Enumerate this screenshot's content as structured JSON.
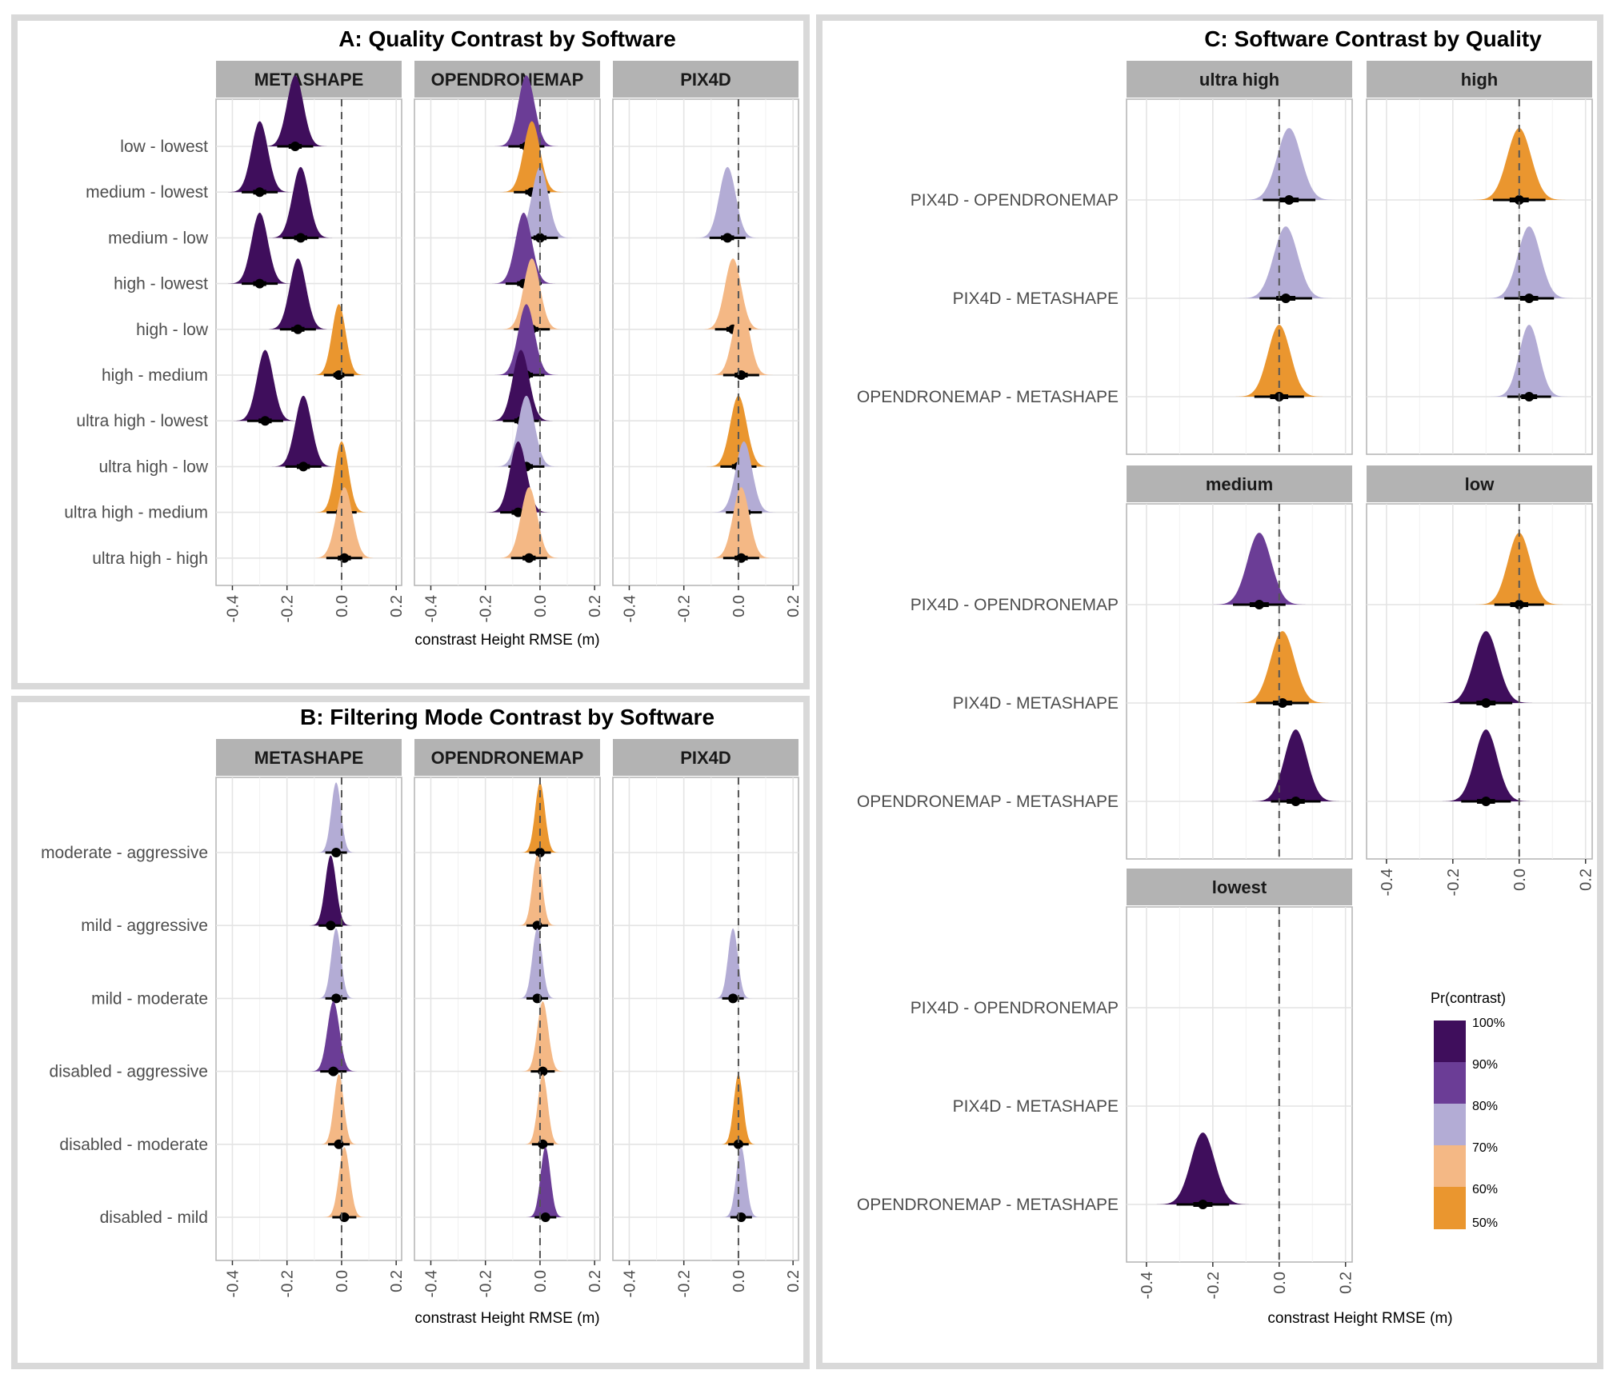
{
  "colors": {
    "c100": "#3f0e5c",
    "c90": "#6b3d96",
    "c80": "#b3acd5",
    "c70": "#f4b885",
    "c60": "#ea962f"
  },
  "panel_a": {
    "title": "A: Quality Contrast by Software"
  },
  "panel_b": {
    "title": "B: Filtering Mode Contrast by Software"
  },
  "panel_c": {
    "title": "C: Software Contrast by Quality"
  },
  "x_axis_label": "constrast Height RMSE (m)",
  "legend": {
    "title": "Pr(contrast)",
    "items": [
      {
        "label": "100%",
        "color": "#3f0e5c"
      },
      {
        "label": "90%",
        "color": "#6b3d96"
      },
      {
        "label": "80%",
        "color": "#b3acd5"
      },
      {
        "label": "70%",
        "color": "#f4b885"
      },
      {
        "label": "60%",
        "color": "#ea962f"
      },
      {
        "label": "50%",
        "color": ""
      }
    ]
  },
  "chart_data": [
    {
      "type": "density-ridge",
      "title": "A: Quality Contrast by Software",
      "xlabel": "constrast Height RMSE (m)",
      "xlim": [
        -0.46,
        0.22
      ],
      "xticks": [
        -0.4,
        -0.2,
        0.0,
        0.2
      ],
      "tick_labels": [
        "-0.4",
        "-0.2",
        "0.0",
        "0.2"
      ],
      "rows": [
        "low - lowest",
        "medium - lowest",
        "medium - low",
        "high - lowest",
        "high - low",
        "high - medium",
        "ultra high - lowest",
        "ultra high - low",
        "ultra high - medium",
        "ultra high - high"
      ],
      "facets": [
        {
          "name": "METASHAPE",
          "median": [
            -0.17,
            -0.3,
            -0.15,
            -0.3,
            -0.16,
            -0.01,
            -0.28,
            -0.14,
            0.0,
            0.01
          ],
          "sd": [
            0.03,
            0.03,
            0.03,
            0.03,
            0.03,
            0.025,
            0.03,
            0.03,
            0.025,
            0.03
          ],
          "tier": [
            "c100",
            "c100",
            "c100",
            "c100",
            "c100",
            "c60",
            "c100",
            "c100",
            "c60",
            "c70"
          ]
        },
        {
          "name": "OPENDRONEMAP",
          "median": [
            -0.05,
            -0.03,
            0.0,
            -0.06,
            -0.03,
            -0.05,
            -0.07,
            -0.05,
            -0.08,
            -0.04
          ],
          "sd": [
            0.03,
            0.03,
            0.03,
            0.03,
            0.03,
            0.03,
            0.03,
            0.03,
            0.03,
            0.03
          ],
          "tier": [
            "c90",
            "c60",
            "c80",
            "c90",
            "c70",
            "c90",
            "c100",
            "c80",
            "c100",
            "c70"
          ]
        },
        {
          "name": "PIX4D",
          "median": [
            null,
            null,
            -0.04,
            null,
            -0.02,
            0.01,
            null,
            0.0,
            0.02,
            0.01
          ],
          "sd": [
            0,
            0,
            0.03,
            0,
            0.03,
            0.03,
            0,
            0.03,
            0.03,
            0.03
          ],
          "tier": [
            "",
            "",
            "c80",
            "",
            "c70",
            "c70",
            "",
            "c60",
            "c80",
            "c70"
          ]
        }
      ]
    },
    {
      "type": "density-ridge",
      "title": "B: Filtering Mode Contrast by Software",
      "xlabel": "constrast Height RMSE (m)",
      "xlim": [
        -0.46,
        0.22
      ],
      "xticks": [
        -0.4,
        -0.2,
        0.0,
        0.2
      ],
      "tick_labels": [
        "-0.4",
        "-0.2",
        "0.0",
        "0.2"
      ],
      "rows": [
        "moderate - aggressive",
        "mild - aggressive",
        "mild - moderate",
        "disabled - aggressive",
        "disabled - moderate",
        "disabled - mild"
      ],
      "facets": [
        {
          "name": "METASHAPE",
          "median": [
            -0.02,
            -0.04,
            -0.02,
            -0.03,
            -0.01,
            0.01
          ],
          "sd": [
            0.018,
            0.02,
            0.018,
            0.022,
            0.018,
            0.02
          ],
          "tier": [
            "c80",
            "c100",
            "c80",
            "c90",
            "c70",
            "c70"
          ]
        },
        {
          "name": "OPENDRONEMAP",
          "median": [
            0.0,
            -0.01,
            -0.01,
            0.01,
            0.01,
            0.02
          ],
          "sd": [
            0.018,
            0.018,
            0.018,
            0.02,
            0.018,
            0.018
          ],
          "tier": [
            "c60",
            "c70",
            "c80",
            "c70",
            "c70",
            "c90"
          ]
        },
        {
          "name": "PIX4D",
          "median": [
            null,
            null,
            -0.02,
            null,
            0.0,
            0.01
          ],
          "sd": [
            0,
            0,
            0.018,
            0,
            0.017,
            0.018
          ],
          "tier": [
            "",
            "",
            "c80",
            "",
            "c60",
            "c80"
          ]
        }
      ]
    },
    {
      "type": "density-ridge",
      "title": "C: Software Contrast by Quality",
      "xlabel": "constrast Height RMSE (m)",
      "xlim": [
        -0.46,
        0.22
      ],
      "xticks": [
        -0.4,
        -0.2,
        0.0,
        0.2
      ],
      "tick_labels": [
        "-0.4",
        "-0.2",
        "0.0",
        "0.2"
      ],
      "rows": [
        "PIX4D - OPENDRONEMAP",
        "PIX4D - METASHAPE",
        "OPENDRONEMAP - METASHAPE"
      ],
      "facets": [
        {
          "name": "ultra high",
          "median": [
            0.03,
            0.02,
            0.0
          ],
          "sd": [
            0.036,
            0.036,
            0.034
          ],
          "tier": [
            "c80",
            "c80",
            "c60"
          ]
        },
        {
          "name": "high",
          "median": [
            0.0,
            0.03,
            0.03
          ],
          "sd": [
            0.036,
            0.034,
            0.03
          ],
          "tier": [
            "c60",
            "c80",
            "c80"
          ]
        },
        {
          "name": "medium",
          "median": [
            -0.06,
            0.01,
            0.05
          ],
          "sd": [
            0.036,
            0.036,
            0.034
          ],
          "tier": [
            "c90",
            "c60",
            "c100"
          ]
        },
        {
          "name": "low",
          "median": [
            0.0,
            -0.1,
            -0.1
          ],
          "sd": [
            0.034,
            0.036,
            0.034
          ],
          "tier": [
            "c60",
            "c100",
            "c100"
          ]
        },
        {
          "name": "lowest",
          "median": [
            null,
            null,
            -0.23
          ],
          "sd": [
            0,
            0,
            0.036
          ],
          "tier": [
            "",
            "",
            "c100"
          ]
        }
      ]
    }
  ]
}
